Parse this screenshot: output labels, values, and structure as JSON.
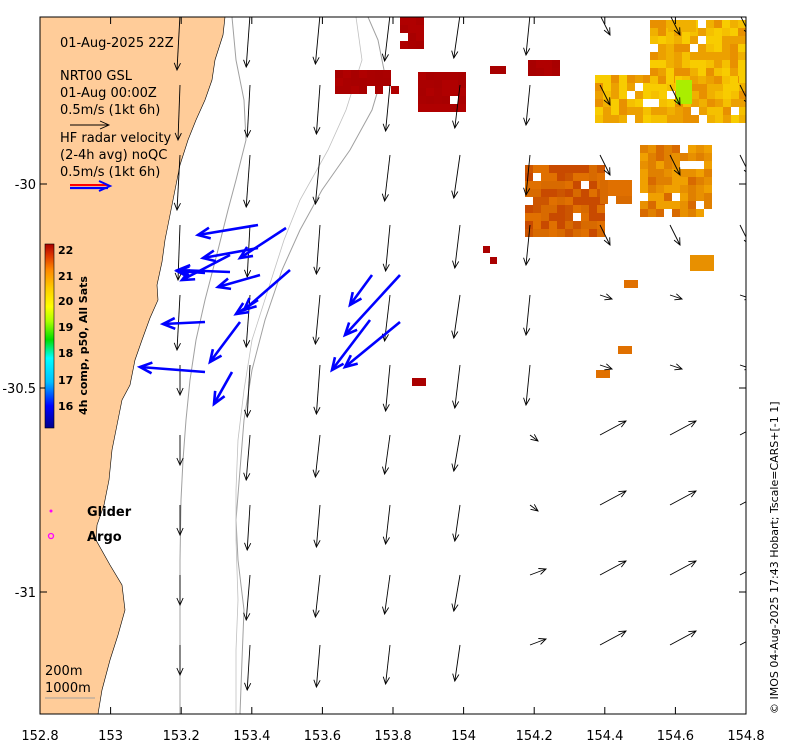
{
  "panel": {
    "date_label": "01-Aug-2025 22Z",
    "model_line1": "NRT00 GSL",
    "model_line2": "01-Aug 00:00Z",
    "model_scale": "0.5m/s (1kt 6h)",
    "radar_line1": "HF radar velocity",
    "radar_line2": "(2-4h avg) noQC",
    "radar_scale": "0.5m/s (1kt 6h)"
  },
  "colorbar": {
    "label": "4h comp, p50, All Sats",
    "ticks": [
      "22",
      "21",
      "20",
      "19",
      "18",
      "17",
      "16"
    ],
    "min": 15.5,
    "max": 22.2
  },
  "legend": {
    "glider": "Glider",
    "argo": "Argo",
    "glider_color": "#ff00ff",
    "argo_color": "#ff00ff"
  },
  "isobaths": {
    "label_200": "200m",
    "label_1000": "1000m"
  },
  "axes": {
    "x_ticks": [
      "152.8",
      "153",
      "153.2",
      "153.4",
      "153.6",
      "153.8",
      "154",
      "154.2",
      "154.4",
      "154.6",
      "154.8"
    ],
    "y_ticks": [
      "-30",
      "-30.5",
      "-31"
    ],
    "x_range": [
      152.8,
      154.8
    ],
    "y_range": [
      -31.3,
      -29.59
    ]
  },
  "credit": "© IMOS 04-Aug-2025 17:43 Hobart; Tscale=CARS+[-1 1]",
  "colors": {
    "land": "#ffcc99",
    "radar_arrows": "#0000ff",
    "model_arrows": "#000000",
    "isobath": "#a0a0a0"
  }
}
